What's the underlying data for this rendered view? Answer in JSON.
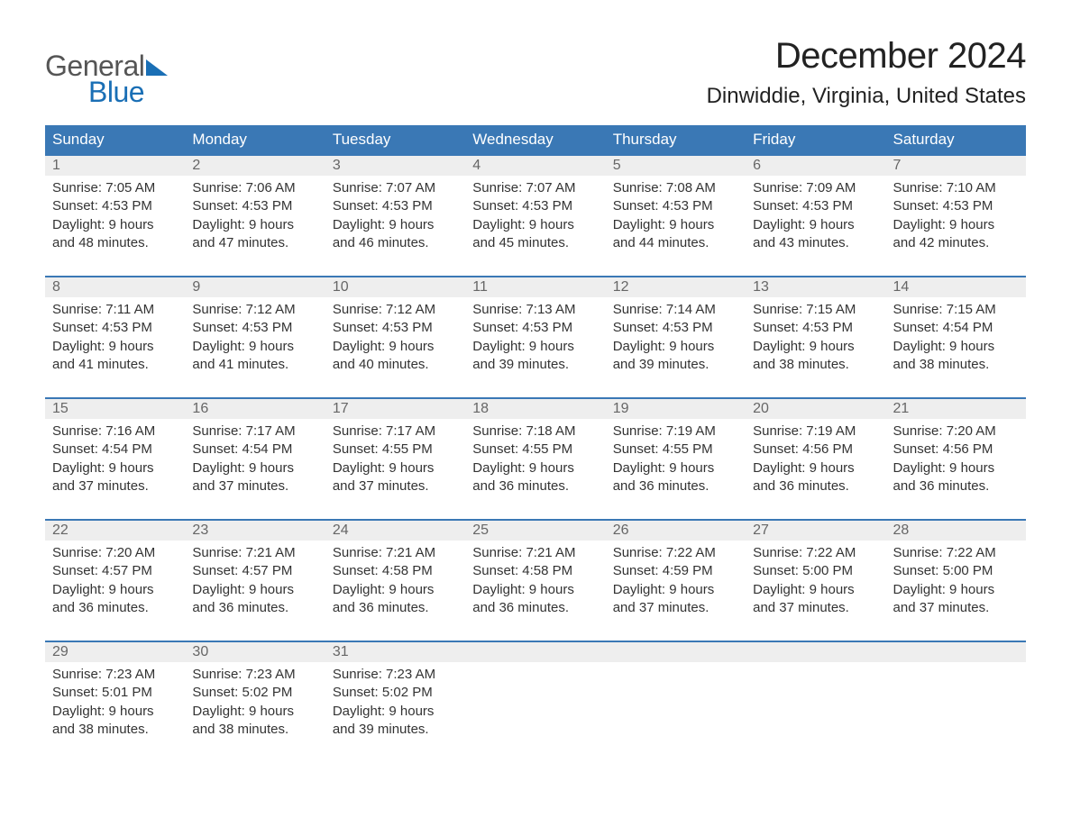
{
  "logo": {
    "part1": "General",
    "part2": "Blue"
  },
  "title": "December 2024",
  "location": "Dinwiddie, Virginia, United States",
  "colors": {
    "header_bg": "#3a78b5",
    "header_text": "#ffffff",
    "daynum_bg": "#eeeeee",
    "daynum_text": "#666666",
    "body_text": "#333333",
    "logo_blue": "#1a6fb5",
    "page_bg": "#ffffff"
  },
  "typography": {
    "title_fontsize": 40,
    "location_fontsize": 24,
    "header_fontsize": 17,
    "daynum_fontsize": 16,
    "body_fontsize": 15
  },
  "day_headers": [
    "Sunday",
    "Monday",
    "Tuesday",
    "Wednesday",
    "Thursday",
    "Friday",
    "Saturday"
  ],
  "weeks": [
    [
      {
        "num": "1",
        "sunrise": "Sunrise: 7:05 AM",
        "sunset": "Sunset: 4:53 PM",
        "day1": "Daylight: 9 hours",
        "day2": "and 48 minutes."
      },
      {
        "num": "2",
        "sunrise": "Sunrise: 7:06 AM",
        "sunset": "Sunset: 4:53 PM",
        "day1": "Daylight: 9 hours",
        "day2": "and 47 minutes."
      },
      {
        "num": "3",
        "sunrise": "Sunrise: 7:07 AM",
        "sunset": "Sunset: 4:53 PM",
        "day1": "Daylight: 9 hours",
        "day2": "and 46 minutes."
      },
      {
        "num": "4",
        "sunrise": "Sunrise: 7:07 AM",
        "sunset": "Sunset: 4:53 PM",
        "day1": "Daylight: 9 hours",
        "day2": "and 45 minutes."
      },
      {
        "num": "5",
        "sunrise": "Sunrise: 7:08 AM",
        "sunset": "Sunset: 4:53 PM",
        "day1": "Daylight: 9 hours",
        "day2": "and 44 minutes."
      },
      {
        "num": "6",
        "sunrise": "Sunrise: 7:09 AM",
        "sunset": "Sunset: 4:53 PM",
        "day1": "Daylight: 9 hours",
        "day2": "and 43 minutes."
      },
      {
        "num": "7",
        "sunrise": "Sunrise: 7:10 AM",
        "sunset": "Sunset: 4:53 PM",
        "day1": "Daylight: 9 hours",
        "day2": "and 42 minutes."
      }
    ],
    [
      {
        "num": "8",
        "sunrise": "Sunrise: 7:11 AM",
        "sunset": "Sunset: 4:53 PM",
        "day1": "Daylight: 9 hours",
        "day2": "and 41 minutes."
      },
      {
        "num": "9",
        "sunrise": "Sunrise: 7:12 AM",
        "sunset": "Sunset: 4:53 PM",
        "day1": "Daylight: 9 hours",
        "day2": "and 41 minutes."
      },
      {
        "num": "10",
        "sunrise": "Sunrise: 7:12 AM",
        "sunset": "Sunset: 4:53 PM",
        "day1": "Daylight: 9 hours",
        "day2": "and 40 minutes."
      },
      {
        "num": "11",
        "sunrise": "Sunrise: 7:13 AM",
        "sunset": "Sunset: 4:53 PM",
        "day1": "Daylight: 9 hours",
        "day2": "and 39 minutes."
      },
      {
        "num": "12",
        "sunrise": "Sunrise: 7:14 AM",
        "sunset": "Sunset: 4:53 PM",
        "day1": "Daylight: 9 hours",
        "day2": "and 39 minutes."
      },
      {
        "num": "13",
        "sunrise": "Sunrise: 7:15 AM",
        "sunset": "Sunset: 4:53 PM",
        "day1": "Daylight: 9 hours",
        "day2": "and 38 minutes."
      },
      {
        "num": "14",
        "sunrise": "Sunrise: 7:15 AM",
        "sunset": "Sunset: 4:54 PM",
        "day1": "Daylight: 9 hours",
        "day2": "and 38 minutes."
      }
    ],
    [
      {
        "num": "15",
        "sunrise": "Sunrise: 7:16 AM",
        "sunset": "Sunset: 4:54 PM",
        "day1": "Daylight: 9 hours",
        "day2": "and 37 minutes."
      },
      {
        "num": "16",
        "sunrise": "Sunrise: 7:17 AM",
        "sunset": "Sunset: 4:54 PM",
        "day1": "Daylight: 9 hours",
        "day2": "and 37 minutes."
      },
      {
        "num": "17",
        "sunrise": "Sunrise: 7:17 AM",
        "sunset": "Sunset: 4:55 PM",
        "day1": "Daylight: 9 hours",
        "day2": "and 37 minutes."
      },
      {
        "num": "18",
        "sunrise": "Sunrise: 7:18 AM",
        "sunset": "Sunset: 4:55 PM",
        "day1": "Daylight: 9 hours",
        "day2": "and 36 minutes."
      },
      {
        "num": "19",
        "sunrise": "Sunrise: 7:19 AM",
        "sunset": "Sunset: 4:55 PM",
        "day1": "Daylight: 9 hours",
        "day2": "and 36 minutes."
      },
      {
        "num": "20",
        "sunrise": "Sunrise: 7:19 AM",
        "sunset": "Sunset: 4:56 PM",
        "day1": "Daylight: 9 hours",
        "day2": "and 36 minutes."
      },
      {
        "num": "21",
        "sunrise": "Sunrise: 7:20 AM",
        "sunset": "Sunset: 4:56 PM",
        "day1": "Daylight: 9 hours",
        "day2": "and 36 minutes."
      }
    ],
    [
      {
        "num": "22",
        "sunrise": "Sunrise: 7:20 AM",
        "sunset": "Sunset: 4:57 PM",
        "day1": "Daylight: 9 hours",
        "day2": "and 36 minutes."
      },
      {
        "num": "23",
        "sunrise": "Sunrise: 7:21 AM",
        "sunset": "Sunset: 4:57 PM",
        "day1": "Daylight: 9 hours",
        "day2": "and 36 minutes."
      },
      {
        "num": "24",
        "sunrise": "Sunrise: 7:21 AM",
        "sunset": "Sunset: 4:58 PM",
        "day1": "Daylight: 9 hours",
        "day2": "and 36 minutes."
      },
      {
        "num": "25",
        "sunrise": "Sunrise: 7:21 AM",
        "sunset": "Sunset: 4:58 PM",
        "day1": "Daylight: 9 hours",
        "day2": "and 36 minutes."
      },
      {
        "num": "26",
        "sunrise": "Sunrise: 7:22 AM",
        "sunset": "Sunset: 4:59 PM",
        "day1": "Daylight: 9 hours",
        "day2": "and 37 minutes."
      },
      {
        "num": "27",
        "sunrise": "Sunrise: 7:22 AM",
        "sunset": "Sunset: 5:00 PM",
        "day1": "Daylight: 9 hours",
        "day2": "and 37 minutes."
      },
      {
        "num": "28",
        "sunrise": "Sunrise: 7:22 AM",
        "sunset": "Sunset: 5:00 PM",
        "day1": "Daylight: 9 hours",
        "day2": "and 37 minutes."
      }
    ],
    [
      {
        "num": "29",
        "sunrise": "Sunrise: 7:23 AM",
        "sunset": "Sunset: 5:01 PM",
        "day1": "Daylight: 9 hours",
        "day2": "and 38 minutes."
      },
      {
        "num": "30",
        "sunrise": "Sunrise: 7:23 AM",
        "sunset": "Sunset: 5:02 PM",
        "day1": "Daylight: 9 hours",
        "day2": "and 38 minutes."
      },
      {
        "num": "31",
        "sunrise": "Sunrise: 7:23 AM",
        "sunset": "Sunset: 5:02 PM",
        "day1": "Daylight: 9 hours",
        "day2": "and 39 minutes."
      },
      null,
      null,
      null,
      null
    ]
  ]
}
